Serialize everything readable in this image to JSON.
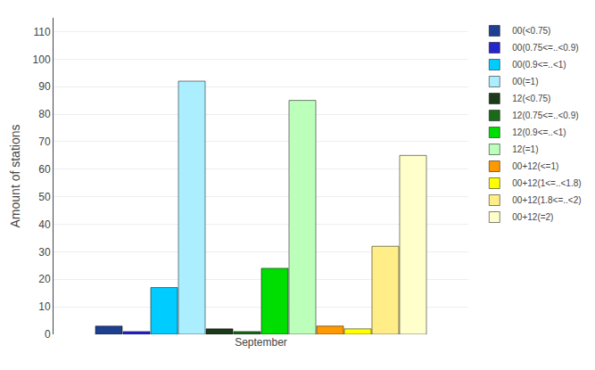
{
  "chart_data": {
    "type": "bar",
    "categories": [
      "September"
    ],
    "series": [
      {
        "name": "00(<0.75)",
        "color": "#1f3f8f",
        "values": [
          3
        ]
      },
      {
        "name": "00(0.75<=..<0.9)",
        "color": "#2525cc",
        "values": [
          1
        ]
      },
      {
        "name": "00(0.9<=..<1)",
        "color": "#00ccff",
        "values": [
          17
        ]
      },
      {
        "name": "00(=1)",
        "color": "#aaeeff",
        "values": [
          92
        ]
      },
      {
        "name": "12(<0.75)",
        "color": "#1a3a1a",
        "values": [
          2
        ]
      },
      {
        "name": "12(0.75<=..<0.9)",
        "color": "#1a6a1a",
        "values": [
          1
        ]
      },
      {
        "name": "12(0.9<=..<1)",
        "color": "#00dd00",
        "values": [
          24
        ]
      },
      {
        "name": "12(=1)",
        "color": "#bbffbb",
        "values": [
          85
        ]
      },
      {
        "name": "00+12(<=1)",
        "color": "#ff9900",
        "values": [
          3
        ]
      },
      {
        "name": "00+12(1<=..<1.8)",
        "color": "#ffff00",
        "values": [
          2
        ]
      },
      {
        "name": "00+12(1.8<=..<2)",
        "color": "#ffee88",
        "values": [
          32
        ]
      },
      {
        "name": "00+12(=2)",
        "color": "#ffffcc",
        "values": [
          65
        ]
      }
    ],
    "ylabel": "Amount of stations",
    "ylim": [
      0,
      115
    ],
    "yticks": [
      0,
      10,
      20,
      30,
      40,
      50,
      60,
      70,
      80,
      90,
      100,
      110
    ],
    "grid": true,
    "legend": "upper right"
  }
}
